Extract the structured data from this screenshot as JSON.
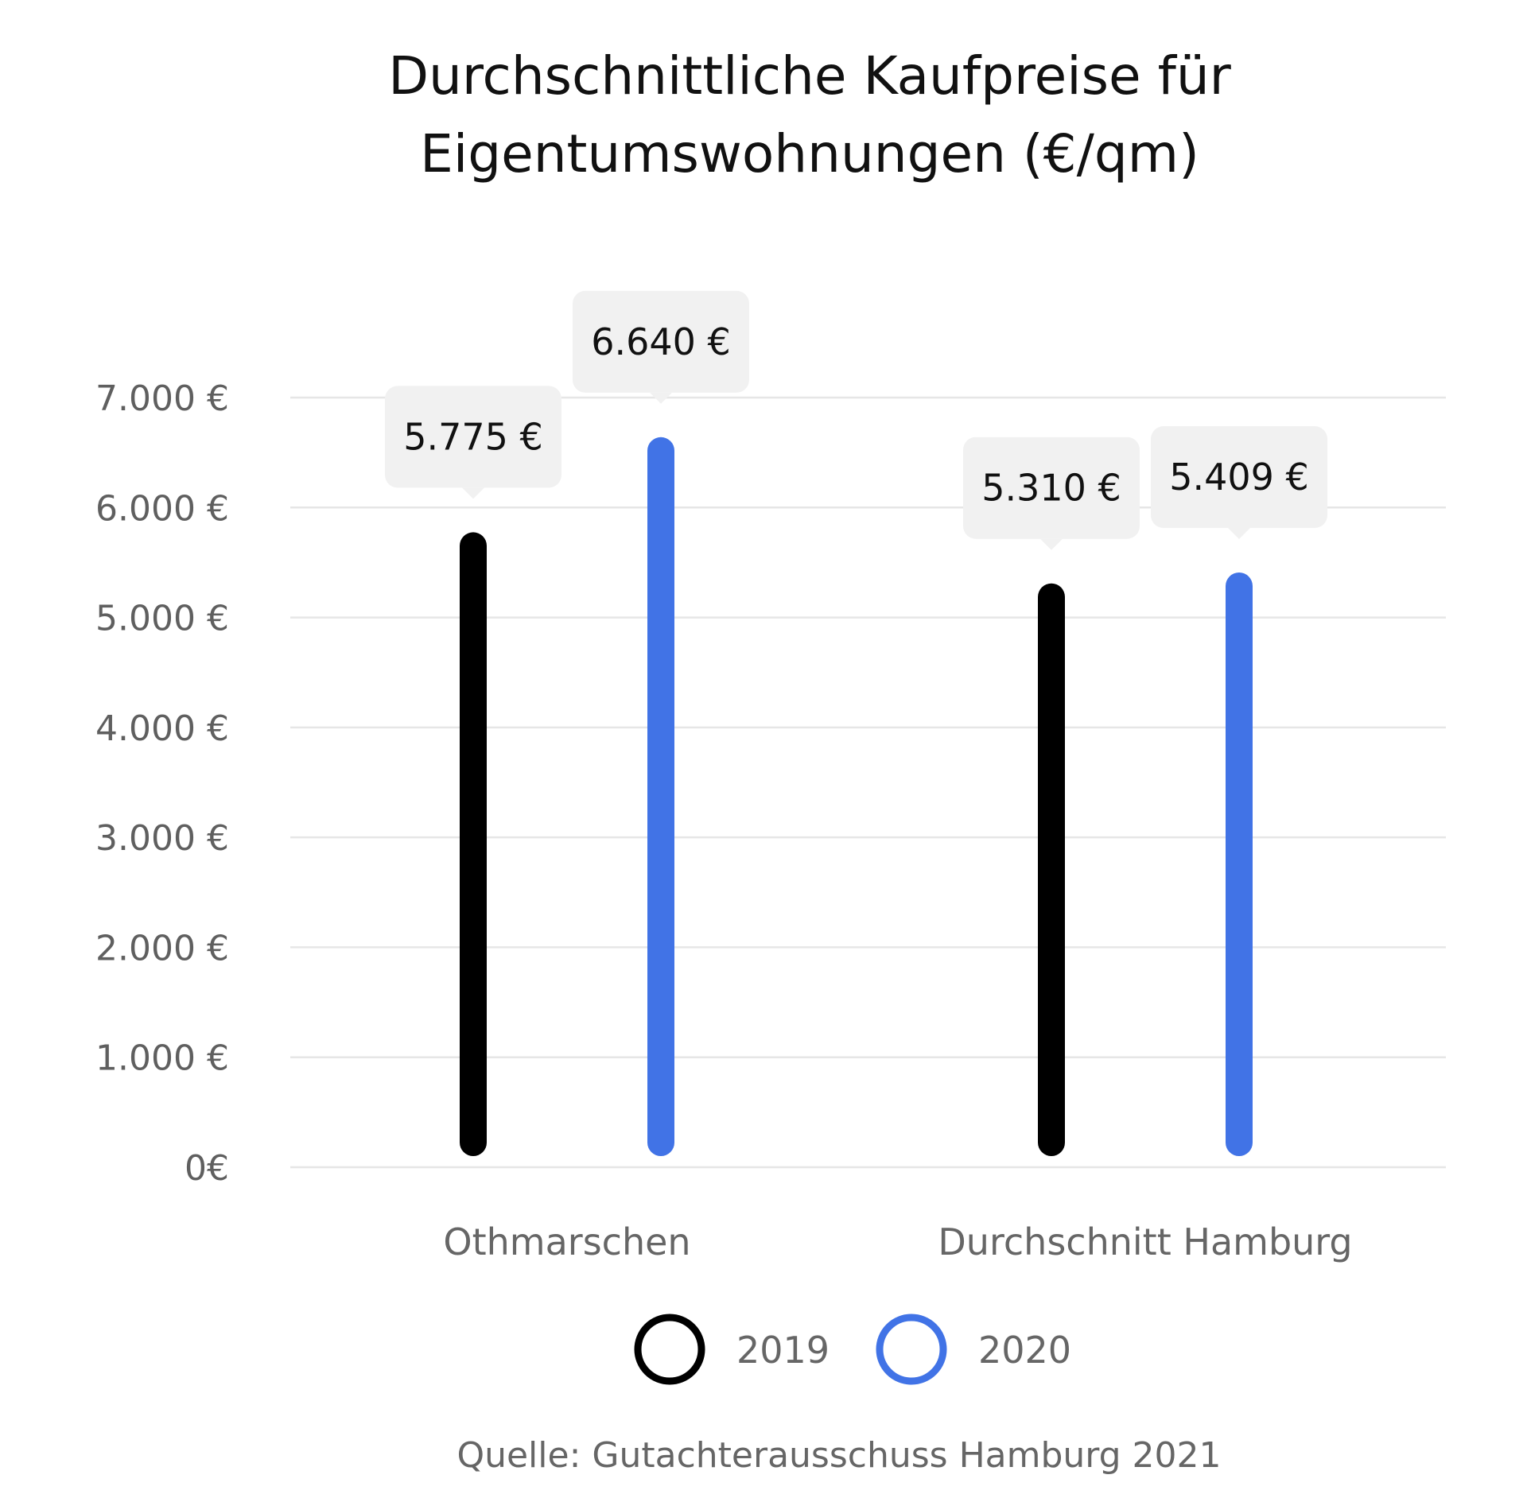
{
  "chart_data": {
    "type": "bar",
    "title_lines": [
      "Durchschnittliche Kaufpreise für",
      "Eigentumswohnungen (€/qm)"
    ],
    "categories": [
      "Othmarschen",
      "Durchschnitt Hamburg"
    ],
    "series": [
      {
        "name": "2019",
        "color": "#000000",
        "values": [
          5775,
          5310
        ],
        "labels": [
          "5.775 €",
          "5.310 €"
        ]
      },
      {
        "name": "2020",
        "color": "#4173e6",
        "values": [
          6640,
          5409
        ],
        "labels": [
          "6.640 €",
          "5.409 €"
        ]
      }
    ],
    "yticks": [
      {
        "value": 0,
        "label": "0€"
      },
      {
        "value": 1000,
        "label": "1.000 €"
      },
      {
        "value": 2000,
        "label": "2.000 €"
      },
      {
        "value": 3000,
        "label": "3.000 €"
      },
      {
        "value": 4000,
        "label": "4.000 €"
      },
      {
        "value": 5000,
        "label": "5.000 €"
      },
      {
        "value": 6000,
        "label": "6.000 €"
      },
      {
        "value": 7000,
        "label": "7.000 €"
      }
    ],
    "ylim": [
      0,
      7000
    ],
    "grid": true,
    "legend_position": "bottom-center",
    "source": "Quelle: Gutachterausschuss Hamburg 2021"
  }
}
